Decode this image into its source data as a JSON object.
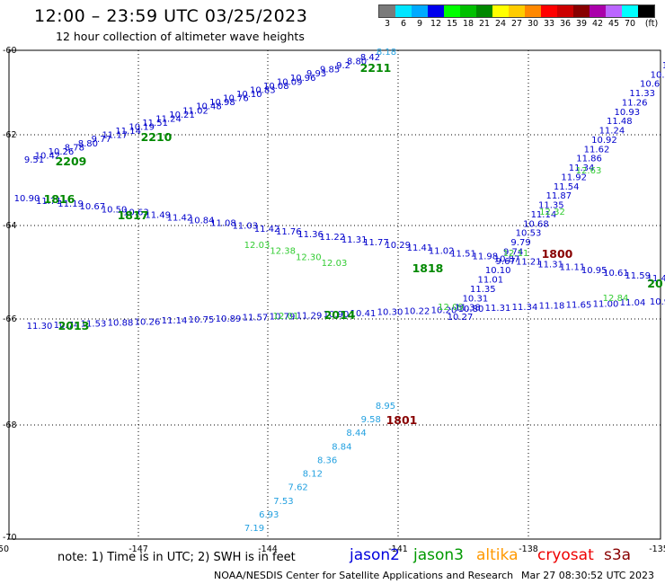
{
  "header": {
    "title": "12:00 – 23:59 UTC 03/25/2023",
    "subtitle": "12 hour collection of altimeter wave heights"
  },
  "legend": {
    "colors": [
      "#7a7a7a",
      "#00e5ff",
      "#00aaff",
      "#0000ee",
      "#00ff00",
      "#00c000",
      "#008800",
      "#ffff00",
      "#ffcc00",
      "#ff8800",
      "#ff0000",
      "#cc0000",
      "#880000",
      "#aa00aa",
      "#bb66ff",
      "#00ffff",
      "#000000"
    ],
    "labels": [
      "3",
      "6",
      "9",
      "12",
      "15",
      "18",
      "21",
      "24",
      "27",
      "30",
      "33",
      "36",
      "39",
      "42",
      "45",
      "70",
      "(ft)"
    ]
  },
  "map": {
    "lon_range": [
      -150,
      -135
    ],
    "lat_range": [
      -70,
      -60
    ],
    "x_ticks": [
      "-150",
      "-147",
      "-144",
      "-141",
      "-138",
      "-135"
    ],
    "y_ticks": [
      "-60",
      "-62",
      "-64",
      "-66",
      "-68",
      "-70"
    ]
  },
  "tracks": [
    {
      "name": "upper-ascending",
      "color": "#0000cc",
      "values": [
        "9.51",
        "10.42",
        "10.26",
        "8.78",
        "8.80",
        "9.77",
        "11.17",
        "11.14",
        "10.19",
        "11.51",
        "11.24",
        "10.21",
        "11.02",
        "10.48",
        "10.98",
        "10.76",
        "10.10",
        "10.83",
        "10.08",
        "10.09",
        "10.96",
        "9.93",
        "9.85",
        "9.2",
        "8.80",
        "8.42"
      ]
    },
    {
      "name": "upper-ascending-end",
      "color": "#22a0e0",
      "values": [
        "8.18"
      ]
    },
    {
      "name": "west-descending",
      "color": "#0000cc",
      "values": [
        "10.90",
        "11.71",
        "11.19",
        "10.67",
        "10.50",
        "10.63",
        "11.49",
        "11.42",
        "10.84",
        "11.08",
        "11.03",
        "11.42",
        "11.76",
        "11.36",
        "11.22",
        "11.31",
        "11.77",
        "10.29",
        "11.41",
        "11.02",
        "11.51",
        "11.98",
        "10.87",
        "11.21",
        "11.31",
        "11.11",
        "10.95",
        "10.61",
        "11.59",
        "11.41"
      ]
    },
    {
      "name": "west-descending-light",
      "color": "#33cc33",
      "values": [
        "12.03",
        "12.38",
        "12.30",
        "12.03"
      ]
    },
    {
      "name": "lower-east",
      "color": "#0000cc",
      "values": [
        "11.30",
        "10.74",
        "11.53",
        "10.88",
        "10.26",
        "11.14",
        "10.75",
        "10.89",
        "11.57",
        "10.79",
        "11.29",
        "10.90",
        "10.41",
        "10.30",
        "10.22",
        "10.20",
        "10.80",
        "11.31",
        "11.34",
        "11.18",
        "11.65",
        "11.00",
        "11.04",
        "10.9"
      ]
    },
    {
      "name": "lower-east-light",
      "color": "#33cc33",
      "values": [
        "12.01",
        "12.09",
        "12.84"
      ]
    },
    {
      "name": "east-ascending",
      "color": "#0000cc",
      "values": [
        "10.27",
        "11.38",
        "10.31",
        "11.35",
        "11.01",
        "10.10",
        "9.67",
        "9.74",
        "9.79",
        "10.53",
        "10.68",
        "11.14",
        "11.35",
        "11.87",
        "11.54",
        "11.92",
        "11.34",
        "11.86",
        "11.62",
        "10.92",
        "11.24",
        "11.48",
        "10.93",
        "11.26",
        "11.33",
        "10.6",
        "10.",
        "1"
      ]
    },
    {
      "name": "east-ascending-light",
      "color": "#33cc33",
      "values": [
        "12.11",
        "12.32",
        "12.63"
      ]
    },
    {
      "name": "southwest-track",
      "color": "#22a0e0",
      "values": [
        "7.19",
        "6.93",
        "7.53",
        "7.62",
        "8.12",
        "8.36",
        "8.84",
        "8.44",
        "9.58",
        "8.95"
      ]
    }
  ],
  "time_labels": [
    {
      "text": "2211",
      "color": "#008800"
    },
    {
      "text": "2210",
      "color": "#008800"
    },
    {
      "text": "2209",
      "color": "#008800"
    },
    {
      "text": "1816",
      "color": "#008800"
    },
    {
      "text": "1817",
      "color": "#008800"
    },
    {
      "text": "1818",
      "color": "#008800"
    },
    {
      "text": "2013",
      "color": "#008800"
    },
    {
      "text": "2014",
      "color": "#008800"
    },
    {
      "text": "20",
      "color": "#008800"
    },
    {
      "text": "1800",
      "color": "#880000"
    },
    {
      "text": "1801",
      "color": "#880000"
    }
  ],
  "footer": {
    "note": "note: 1) Time is in UTC; 2) SWH is in feet",
    "satellites": [
      {
        "name": "jason2",
        "color": "#0000dd"
      },
      {
        "name": "jason3",
        "color": "#009900"
      },
      {
        "name": "altika",
        "color": "#ff9900"
      },
      {
        "name": "cryosat",
        "color": "#ee0000"
      },
      {
        "name": "s3a",
        "color": "#880000"
      }
    ],
    "credit": "NOAA/NESDIS Center for Satellite Applications and Research",
    "timestamp": "Mar 27 08:30:52 UTC 2023"
  }
}
